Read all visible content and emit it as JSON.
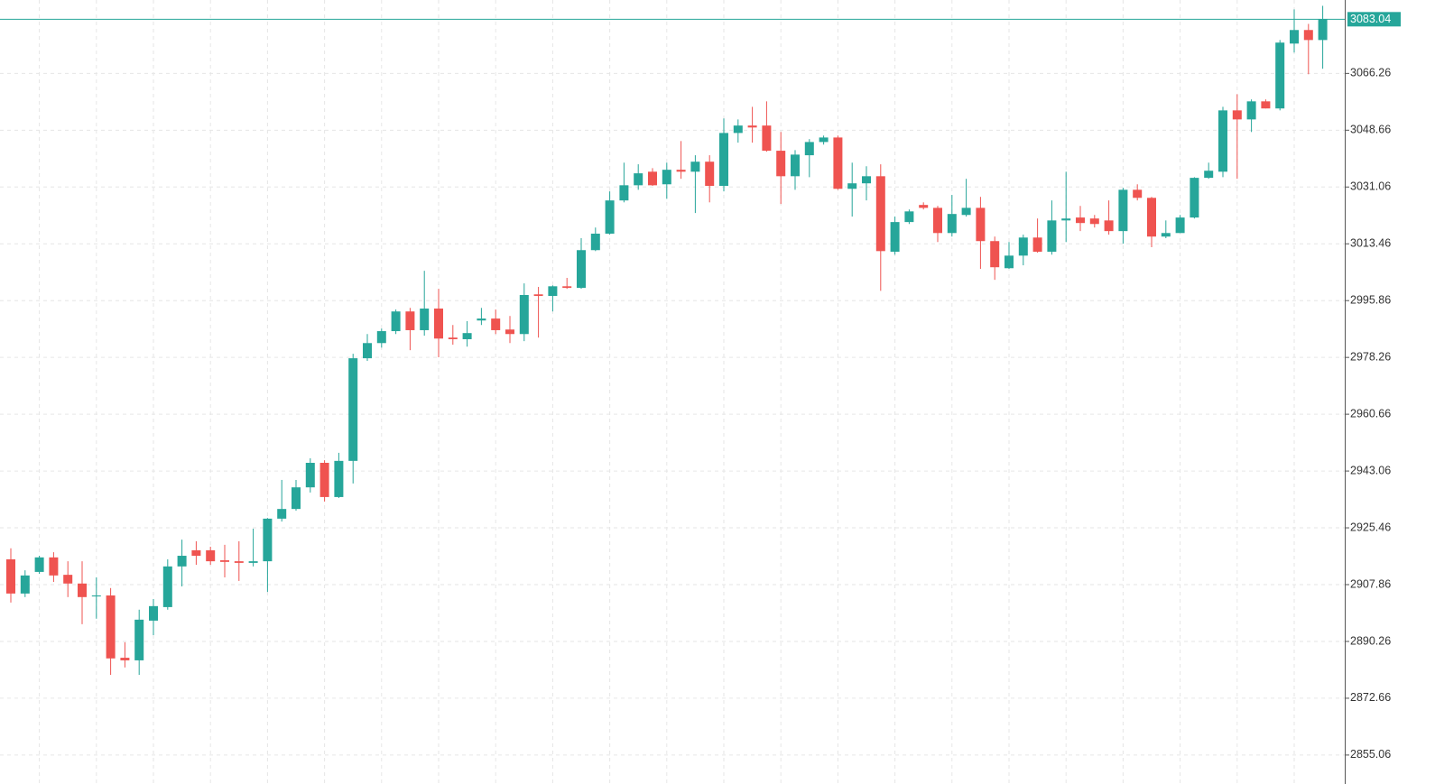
{
  "chart_data": {
    "type": "candlestick",
    "up_color": "#26a69a",
    "down_color": "#ef5350",
    "grid": true,
    "price_line": true,
    "ylim": [
      2850,
      3089
    ],
    "yticks": [
      2855.06,
      2872.66,
      2890.26,
      2907.86,
      2925.46,
      2943.06,
      2960.66,
      2978.26,
      2995.86,
      3013.46,
      3031.06,
      3048.66,
      3066.26
    ],
    "series": [
      {
        "open": [
          2915.7,
          2905.1,
          2911.8,
          2916.3,
          2910.9,
          2908.2,
          2904.2,
          2904.5,
          2885.2,
          2884.4,
          2896.7,
          2900.9,
          2913.5,
          2918.5,
          2918.5,
          2915.4,
          2915.1,
          2914.6,
          2915.1,
          2928.3,
          2931.3,
          2938.0,
          2945.6,
          2935.0,
          2946.2,
          2978.0,
          2982.7,
          2986.4,
          2992.5,
          2986.7,
          2993.4,
          2984.4,
          2983.9,
          2989.7,
          2990.3,
          2986.9,
          2985.5,
          2997.8,
          2997.3,
          3000.3,
          2999.8,
          3011.5,
          3016.6,
          3026.9,
          3031.6,
          3035.8,
          3031.9,
          3036.4,
          3035.8,
          3038.9,
          3031.4,
          3047.8,
          3050.1,
          3050.1,
          3042.3,
          3034.4,
          3040.9,
          3045.0,
          3046.4,
          3030.5,
          3032.2,
          3034.4,
          3011.0,
          3020.2,
          3025.5,
          3024.6,
          3016.8,
          3022.4,
          3024.6,
          3014.3,
          3005.9,
          3009.8,
          3015.4,
          3011.0,
          3020.7,
          3021.6,
          3021.3,
          3020.7,
          3017.4,
          3030.2,
          3027.7,
          3015.7,
          3016.8,
          3021.6,
          3033.9,
          3035.8,
          3054.8,
          3052.0,
          3057.6,
          3055.4,
          3075.5,
          3079.7,
          3076.6
        ],
        "high": [
          2919.1,
          2912.3,
          2916.8,
          2917.9,
          2915.1,
          2915.1,
          2910.1,
          2906.8,
          2890.0,
          2900.1,
          2903.4,
          2915.7,
          2921.8,
          2921.3,
          2919.6,
          2920.2,
          2921.3,
          2925.2,
          2928.5,
          2940.3,
          2940.3,
          2947.0,
          2946.4,
          2948.7,
          2979.4,
          2985.5,
          2987.2,
          2993.1,
          2993.6,
          3005.1,
          2999.5,
          2988.3,
          2989.5,
          2993.6,
          2993.1,
          2991.1,
          3001.2,
          3000.1,
          3000.6,
          3002.9,
          3015.2,
          3018.5,
          3029.7,
          3038.6,
          3038.1,
          3036.9,
          3038.6,
          3045.3,
          3040.9,
          3040.9,
          3052.3,
          3052.0,
          3055.9,
          3057.6,
          3048.1,
          3042.5,
          3045.9,
          3047.0,
          3047.0,
          3038.6,
          3037.5,
          3038.1,
          3021.9,
          3024.1,
          3026.3,
          3025.2,
          3028.6,
          3033.6,
          3028.0,
          3015.7,
          3014.0,
          3016.3,
          3021.3,
          3026.9,
          3035.8,
          3025.2,
          3022.4,
          3026.9,
          3030.8,
          3031.9,
          3028.0,
          3020.7,
          3022.4,
          3034.1,
          3038.6,
          3055.9,
          3059.8,
          3058.2,
          3058.2,
          3076.6,
          3086.1,
          3081.6,
          3087.2
        ],
        "low": [
          2902.3,
          2904.0,
          2911.2,
          2908.7,
          2904.0,
          2895.6,
          2897.3,
          2879.9,
          2882.2,
          2879.9,
          2892.2,
          2900.1,
          2907.3,
          2914.0,
          2914.0,
          2910.1,
          2909.0,
          2913.5,
          2905.6,
          2927.4,
          2930.8,
          2936.4,
          2933.6,
          2934.7,
          2939.2,
          2977.2,
          2981.3,
          2985.5,
          2980.5,
          2985.0,
          2978.3,
          2982.2,
          2981.6,
          2988.3,
          2985.5,
          2982.7,
          2983.3,
          2984.4,
          2992.5,
          2999.5,
          2999.5,
          3011.2,
          3016.3,
          3026.3,
          3030.2,
          3031.4,
          3027.4,
          3033.6,
          3023.0,
          3026.3,
          3029.7,
          3044.8,
          3044.8,
          3042.0,
          3025.8,
          3030.2,
          3034.1,
          3044.2,
          3030.2,
          3021.9,
          3026.9,
          2998.9,
          3010.1,
          3019.6,
          3024.1,
          3014.0,
          3015.7,
          3021.9,
          3005.7,
          3002.3,
          3005.7,
          3006.8,
          3010.7,
          3010.1,
          3014.0,
          3017.4,
          3018.5,
          3016.3,
          3013.5,
          3026.9,
          3012.4,
          3015.2,
          3016.8,
          3021.3,
          3033.6,
          3034.1,
          3033.6,
          3048.1,
          3055.4,
          3054.8,
          3072.7,
          3066.0,
          3067.7
        ],
        "close": [
          2905.1,
          2910.7,
          2916.3,
          2910.7,
          2908.2,
          2904.0,
          2904.5,
          2885.0,
          2884.4,
          2897.0,
          2901.2,
          2913.5,
          2916.8,
          2916.8,
          2915.1,
          2914.9,
          2914.6,
          2915.1,
          2928.3,
          2931.3,
          2938.0,
          2945.6,
          2935.0,
          2946.2,
          2978.0,
          2982.7,
          2986.4,
          2992.5,
          2986.7,
          2993.4,
          2984.1,
          2983.9,
          2985.8,
          2990.3,
          2986.7,
          2985.5,
          2997.6,
          2997.3,
          3000.3,
          2999.8,
          3011.5,
          3016.6,
          3026.9,
          3031.6,
          3035.3,
          3031.6,
          3036.4,
          3035.8,
          3038.9,
          3031.4,
          3047.8,
          3050.1,
          3049.5,
          3042.3,
          3034.4,
          3041.1,
          3045.0,
          3046.4,
          3030.5,
          3032.2,
          3034.4,
          3011.2,
          3020.2,
          3023.5,
          3024.6,
          3016.8,
          3022.7,
          3024.6,
          3014.3,
          3006.2,
          3009.8,
          3015.4,
          3011.0,
          3020.7,
          3021.3,
          3019.9,
          3019.6,
          3017.4,
          3030.2,
          3027.7,
          3015.7,
          3016.8,
          3021.6,
          3033.9,
          3036.1,
          3054.8,
          3052.0,
          3057.6,
          3055.4,
          3075.8,
          3079.7,
          3076.6,
          3083.04
        ]
      }
    ]
  }
}
